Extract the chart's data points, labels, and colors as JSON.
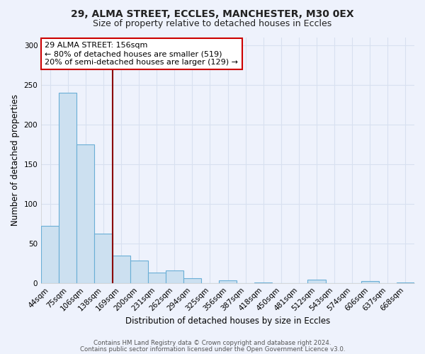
{
  "title_line1": "29, ALMA STREET, ECCLES, MANCHESTER, M30 0EX",
  "title_line2": "Size of property relative to detached houses in Eccles",
  "xlabel": "Distribution of detached houses by size in Eccles",
  "ylabel": "Number of detached properties",
  "bar_labels": [
    "44sqm",
    "75sqm",
    "106sqm",
    "138sqm",
    "169sqm",
    "200sqm",
    "231sqm",
    "262sqm",
    "294sqm",
    "325sqm",
    "356sqm",
    "387sqm",
    "418sqm",
    "450sqm",
    "481sqm",
    "512sqm",
    "543sqm",
    "574sqm",
    "606sqm",
    "637sqm",
    "668sqm"
  ],
  "bar_values": [
    72,
    240,
    175,
    62,
    35,
    28,
    13,
    16,
    6,
    0,
    3,
    0,
    1,
    0,
    0,
    4,
    0,
    0,
    2,
    0,
    1
  ],
  "bar_color": "#cce0f0",
  "bar_edge_color": "#6aaed6",
  "ylim": [
    0,
    310
  ],
  "yticks": [
    0,
    50,
    100,
    150,
    200,
    250,
    300
  ],
  "vline_x": 3.5,
  "vline_color": "#8b0000",
  "annotation_title": "29 ALMA STREET: 156sqm",
  "annotation_line2": "← 80% of detached houses are smaller (519)",
  "annotation_line3": "20% of semi-detached houses are larger (129) →",
  "annotation_box_color": "#ffffff",
  "annotation_box_edge": "#cc0000",
  "footer_line1": "Contains HM Land Registry data © Crown copyright and database right 2024.",
  "footer_line2": "Contains public sector information licensed under the Open Government Licence v3.0.",
  "background_color": "#eef2fc",
  "plot_bg_color": "#eef2fc",
  "grid_color": "#d8e0f0"
}
